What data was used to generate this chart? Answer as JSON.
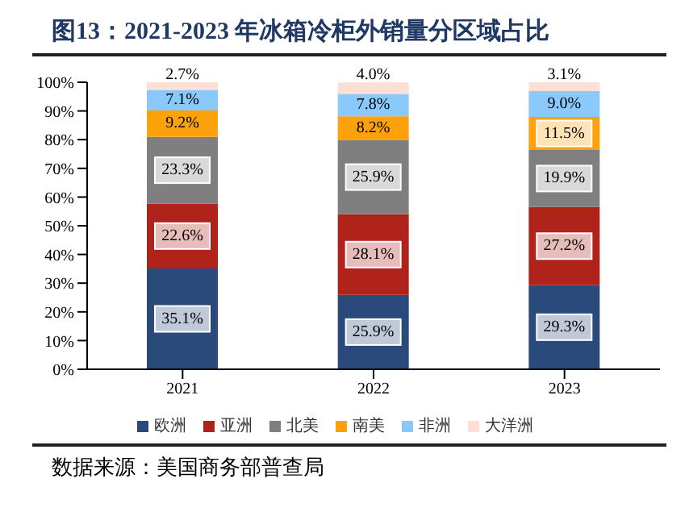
{
  "chart_data": {
    "type": "bar",
    "title": "图13：2021-2023 年冰箱冷柜外销量分区域占比",
    "stacked": true,
    "categories": [
      "2021",
      "2022",
      "2023"
    ],
    "series": [
      {
        "name": "欧洲",
        "color": "#2b4a7c",
        "values": [
          35.1,
          25.9,
          29.3
        ],
        "value_labels": [
          "35.1%",
          "25.9%",
          "29.3%"
        ]
      },
      {
        "name": "亚洲",
        "color": "#b0231b",
        "values": [
          22.6,
          28.1,
          27.2
        ],
        "value_labels": [
          "22.6%",
          "28.1%",
          "27.2%"
        ]
      },
      {
        "name": "北美",
        "color": "#7f7f7f",
        "values": [
          23.3,
          25.9,
          19.9
        ],
        "value_labels": [
          "23.3%",
          "25.9%",
          "19.9%"
        ]
      },
      {
        "name": "南美",
        "color": "#ffa10a",
        "values": [
          9.2,
          8.2,
          11.5
        ],
        "value_labels": [
          "9.2%",
          "8.2%",
          "11.5%"
        ]
      },
      {
        "name": "非洲",
        "color": "#89c9fb",
        "values": [
          7.1,
          7.8,
          9.0
        ],
        "value_labels": [
          "7.1%",
          "7.8%",
          "9.0%"
        ]
      },
      {
        "name": "大洋洲",
        "color": "#fde0d3",
        "values": [
          2.7,
          4.0,
          3.1
        ],
        "value_labels": [
          "2.7%",
          "4.0%",
          "3.1%"
        ]
      }
    ],
    "ylim": [
      0,
      100
    ],
    "yticks": [
      {
        "value": 0,
        "label": "0%"
      },
      {
        "value": 10,
        "label": "10%"
      },
      {
        "value": 20,
        "label": "20%"
      },
      {
        "value": 30,
        "label": "30%"
      },
      {
        "value": 40,
        "label": "40%"
      },
      {
        "value": 50,
        "label": "50%"
      },
      {
        "value": 60,
        "label": "60%"
      },
      {
        "value": 70,
        "label": "70%"
      },
      {
        "value": 80,
        "label": "80%"
      },
      {
        "value": 90,
        "label": "90%"
      },
      {
        "value": 100,
        "label": "100%"
      }
    ],
    "grid": false,
    "legend": "bottom",
    "annotations": [
      "数据来源：美国商务部普查局"
    ]
  }
}
